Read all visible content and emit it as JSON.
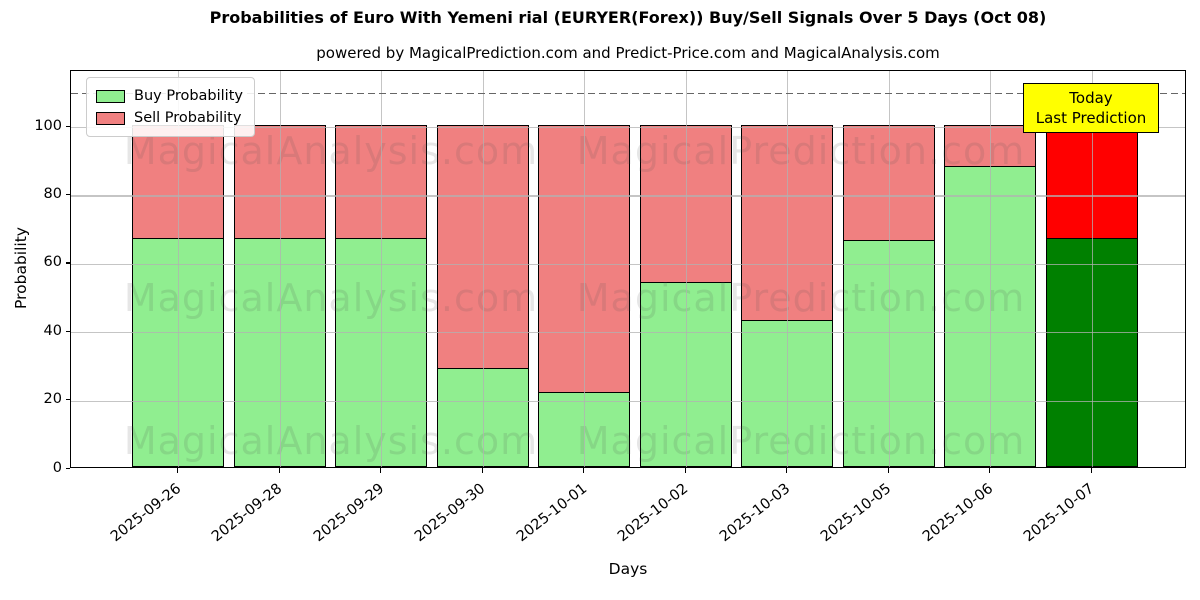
{
  "title": "Probabilities of Euro With Yemeni rial (EURYER(Forex)) Buy/Sell Signals Over 5 Days (Oct 08)",
  "subtitle": "powered by MagicalPrediction.com and Predict-Price.com and MagicalAnalysis.com",
  "legend": {
    "items": [
      {
        "label": "Buy Probability",
        "color": "#90EE90"
      },
      {
        "label": "Sell Probability",
        "color": "#F08080"
      }
    ]
  },
  "annotation": {
    "line1": "Today",
    "line2": "Last Prediction",
    "bg": "#FFFF00"
  },
  "watermarks": {
    "left": "MagicalAnalysis.com",
    "right": "MagicalPrediction.com"
  },
  "chart_data": {
    "type": "bar",
    "stacked": true,
    "title": "Probabilities of Euro With Yemeni rial (EURYER(Forex)) Buy/Sell Signals Over 5 Days (Oct 08)",
    "xlabel": "Days",
    "ylabel": "Probability",
    "categories": [
      "2025-09-26",
      "2025-09-28",
      "2025-09-29",
      "2025-09-30",
      "2025-10-01",
      "2025-10-02",
      "2025-10-03",
      "2025-10-05",
      "2025-10-06",
      "2025-10-07"
    ],
    "series": [
      {
        "name": "Buy Probability",
        "values": [
          67,
          67,
          67,
          29,
          22,
          54,
          43,
          66.5,
          88,
          67
        ]
      },
      {
        "name": "Sell Probability",
        "values": [
          33,
          33,
          33,
          71,
          78,
          46,
          57,
          33.5,
          12,
          33
        ]
      }
    ],
    "normal_colors": {
      "buy": "#90EE90",
      "sell": "#F08080"
    },
    "today_colors": {
      "buy": "#008000",
      "sell": "#FF0000"
    },
    "today_index": 9,
    "ylim": [
      0,
      116.4
    ],
    "yticks": [
      0,
      20,
      40,
      60,
      80,
      100
    ],
    "dashed_line_y": 110,
    "grid": true,
    "legend_position": "upper left"
  }
}
